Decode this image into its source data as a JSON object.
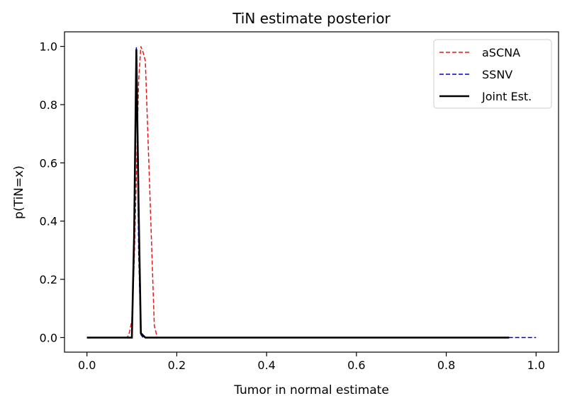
{
  "chart_data": {
    "type": "line",
    "title": "TiN estimate posterior",
    "xlabel": "Tumor in normal estimate",
    "ylabel": "p(TiN=x)",
    "xlim": [
      -0.05,
      1.05
    ],
    "ylim": [
      -0.05,
      1.05
    ],
    "xticks": [
      {
        "value": 0.0,
        "label": "0.0"
      },
      {
        "value": 0.2,
        "label": "0.2"
      },
      {
        "value": 0.4,
        "label": "0.4"
      },
      {
        "value": 0.6,
        "label": "0.6"
      },
      {
        "value": 0.8,
        "label": "0.8"
      },
      {
        "value": 1.0,
        "label": "1.0"
      }
    ],
    "yticks": [
      {
        "value": 0.0,
        "label": "0.0"
      },
      {
        "value": 0.2,
        "label": "0.2"
      },
      {
        "value": 0.4,
        "label": "0.4"
      },
      {
        "value": 0.6,
        "label": "0.6"
      },
      {
        "value": 0.8,
        "label": "0.8"
      },
      {
        "value": 1.0,
        "label": "1.0"
      }
    ],
    "grid": false,
    "legend_position": "top-right",
    "series": [
      {
        "name": "aSCNA",
        "color": "#e41a1c",
        "style": "dashed",
        "x": [
          0.0,
          0.09,
          0.095,
          0.1,
          0.105,
          0.11,
          0.115,
          0.12,
          0.125,
          0.13,
          0.14,
          0.15,
          0.155
        ],
        "y": [
          0.0,
          0.0,
          0.02,
          0.06,
          0.25,
          0.55,
          0.88,
          1.0,
          0.98,
          0.95,
          0.5,
          0.04,
          0.01
        ]
      },
      {
        "name": "SSNV",
        "color": "#0000cc",
        "style": "dashed",
        "x": [
          0.0,
          0.1,
          0.105,
          0.11,
          0.115,
          0.12,
          0.125,
          0.13,
          0.2,
          0.6,
          1.0
        ],
        "y": [
          0.0,
          0.0,
          0.3,
          1.0,
          0.3,
          0.01,
          0.0,
          0.0,
          0.0,
          0.0,
          0.0
        ]
      },
      {
        "name": "Joint Est.",
        "color": "#000000",
        "style": "solid",
        "x": [
          0.0,
          0.1,
          0.105,
          0.11,
          0.115,
          0.12,
          0.13,
          0.2,
          0.6,
          0.94
        ],
        "y": [
          0.0,
          0.0,
          0.35,
          0.99,
          0.45,
          0.015,
          0.0,
          0.0,
          0.0,
          0.0
        ]
      }
    ]
  }
}
